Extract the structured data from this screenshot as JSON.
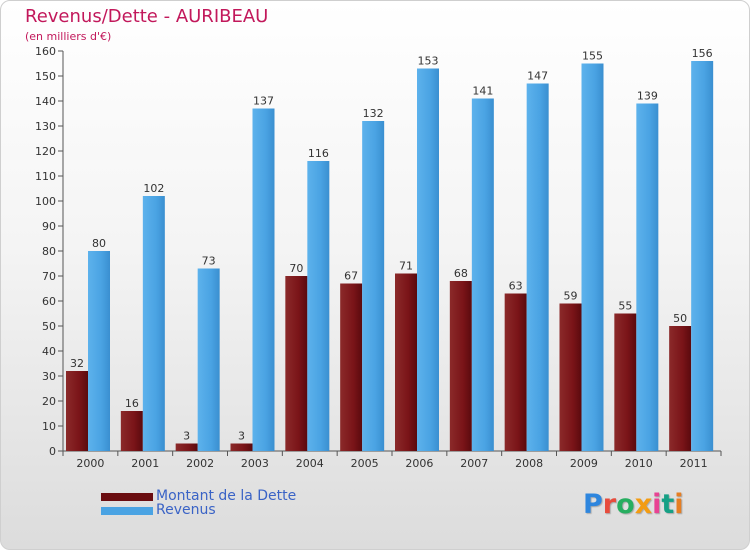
{
  "chart_data": {
    "type": "bar",
    "title": "Revenus/Dette - AURIBEAU",
    "subtitle": "(en milliers d'€)",
    "categories": [
      "2000",
      "2001",
      "2002",
      "2003",
      "2004",
      "2005",
      "2006",
      "2007",
      "2008",
      "2009",
      "2010",
      "2011"
    ],
    "series": [
      {
        "name": "Montant de la Dette",
        "values": [
          32,
          16,
          3,
          3,
          70,
          67,
          71,
          68,
          63,
          59,
          55,
          50
        ],
        "color": "#7a1418"
      },
      {
        "name": "Revenus",
        "values": [
          80,
          102,
          73,
          137,
          116,
          132,
          153,
          141,
          147,
          155,
          139,
          156
        ],
        "color": "#4aa3e3"
      }
    ],
    "ylim": [
      0,
      160
    ],
    "yticks": [
      0,
      10,
      20,
      30,
      40,
      50,
      60,
      70,
      80,
      90,
      100,
      110,
      120,
      130,
      140,
      150,
      160
    ],
    "grid": false,
    "legend_position": "bottom-left"
  },
  "logo": {
    "letters": [
      "P",
      "r",
      "o",
      "x",
      "i",
      "t",
      "i"
    ],
    "colors": [
      "#2e86de",
      "#e74c3c",
      "#27ae60",
      "#f39c12",
      "#e84393",
      "#16a085",
      "#e67e22"
    ]
  }
}
